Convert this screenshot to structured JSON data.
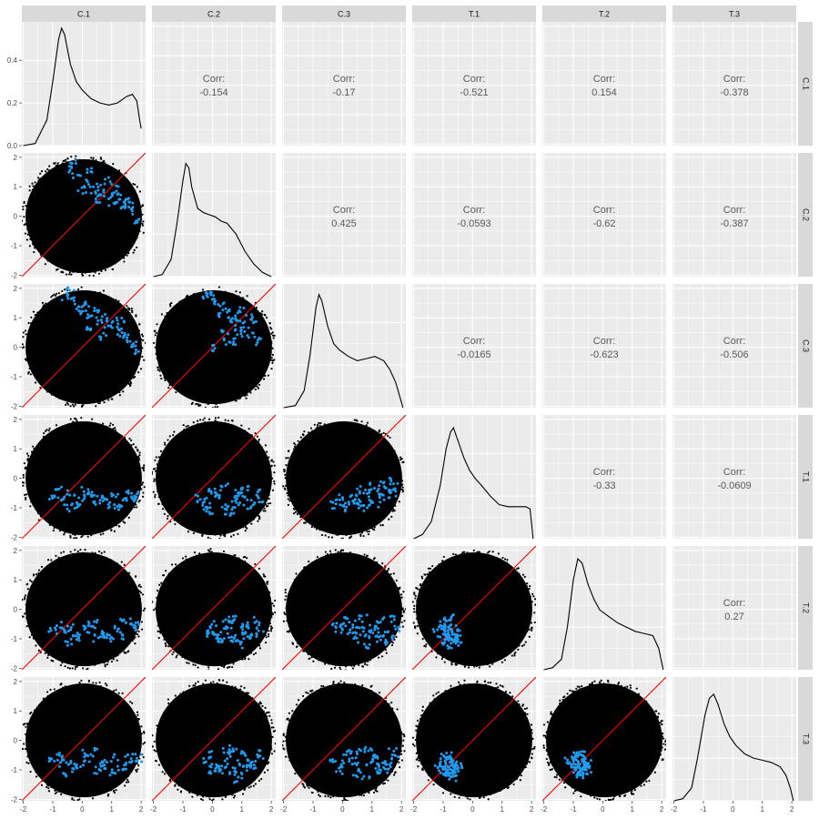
{
  "variables": [
    "C.1",
    "C.2",
    "C.3",
    "T.1",
    "T.2",
    "T.3"
  ],
  "colors": {
    "panel_bg": "#ebebeb",
    "grid": "#ffffff",
    "strip_bg": "#d9d9d9",
    "points": "#000000",
    "highlight": "#1f9bf0",
    "reference_line": "#ff0000"
  },
  "chart_data": {
    "type": "scatter",
    "layout": "pairs-matrix",
    "upper": "correlation-text",
    "diagonal": "density",
    "lower": "scatter with highlighted subset and y = x reference line",
    "corr_label": "Corr:",
    "axis_ticks": [
      "-2",
      "-1",
      "0",
      "1",
      "2"
    ],
    "axis_range": [
      -2.05,
      2.15
    ],
    "density_yticks": [
      "0.0",
      "0.2",
      "0.4"
    ],
    "density_ylim": [
      0,
      0.58
    ],
    "correlations": [
      {
        "row": "C.1",
        "col": "C.2",
        "value": "-0.154"
      },
      {
        "row": "C.1",
        "col": "C.3",
        "value": "-0.17"
      },
      {
        "row": "C.1",
        "col": "T.1",
        "value": "-0.521"
      },
      {
        "row": "C.1",
        "col": "T.2",
        "value": "0.154"
      },
      {
        "row": "C.1",
        "col": "T.3",
        "value": "-0.378"
      },
      {
        "row": "C.2",
        "col": "C.3",
        "value": "0.425"
      },
      {
        "row": "C.2",
        "col": "T.1",
        "value": "-0.0593"
      },
      {
        "row": "C.2",
        "col": "T.2",
        "value": "-0.62"
      },
      {
        "row": "C.2",
        "col": "T.3",
        "value": "-0.387"
      },
      {
        "row": "C.3",
        "col": "T.1",
        "value": "-0.0165"
      },
      {
        "row": "C.3",
        "col": "T.2",
        "value": "-0.623"
      },
      {
        "row": "C.3",
        "col": "T.3",
        "value": "-0.506"
      },
      {
        "row": "T.1",
        "col": "T.2",
        "value": "-0.33"
      },
      {
        "row": "T.1",
        "col": "T.3",
        "value": "-0.0609"
      },
      {
        "row": "T.2",
        "col": "T.3",
        "value": "0.27"
      }
    ],
    "densities": [
      {
        "var": "C.1",
        "x": [
          -2.0,
          -1.6,
          -1.2,
          -1.0,
          -0.8,
          -0.7,
          -0.6,
          -0.4,
          -0.2,
          0.0,
          0.3,
          0.6,
          0.9,
          1.2,
          1.5,
          1.7,
          1.85,
          1.95,
          2.0
        ],
        "y": [
          0.0,
          0.01,
          0.12,
          0.3,
          0.5,
          0.55,
          0.52,
          0.38,
          0.3,
          0.26,
          0.22,
          0.2,
          0.19,
          0.2,
          0.23,
          0.24,
          0.21,
          0.12,
          0.08
        ]
      },
      {
        "var": "C.2",
        "x": [
          -2.0,
          -1.7,
          -1.4,
          -1.2,
          -1.0,
          -0.9,
          -0.8,
          -0.7,
          -0.5,
          -0.3,
          -0.1,
          0.1,
          0.3,
          0.5,
          0.8,
          1.1,
          1.4,
          1.7,
          2.0
        ],
        "y": [
          0.0,
          0.01,
          0.08,
          0.25,
          0.45,
          0.53,
          0.51,
          0.42,
          0.32,
          0.3,
          0.29,
          0.28,
          0.26,
          0.25,
          0.2,
          0.12,
          0.06,
          0.02,
          0.0
        ]
      },
      {
        "var": "C.3",
        "x": [
          -2.0,
          -1.6,
          -1.3,
          -1.1,
          -0.9,
          -0.8,
          -0.7,
          -0.5,
          -0.3,
          -0.1,
          0.2,
          0.5,
          0.8,
          1.1,
          1.4,
          1.6,
          1.8,
          1.95,
          2.05
        ],
        "y": [
          0.0,
          0.01,
          0.08,
          0.25,
          0.47,
          0.53,
          0.5,
          0.38,
          0.3,
          0.27,
          0.24,
          0.22,
          0.23,
          0.24,
          0.22,
          0.18,
          0.12,
          0.05,
          0.0
        ]
      },
      {
        "var": "T.1",
        "x": [
          -2.0,
          -1.7,
          -1.4,
          -1.1,
          -0.9,
          -0.75,
          -0.65,
          -0.5,
          -0.3,
          -0.1,
          0.1,
          0.3,
          0.6,
          0.9,
          1.2,
          1.5,
          1.8,
          1.95,
          2.05
        ],
        "y": [
          0.0,
          0.02,
          0.08,
          0.25,
          0.42,
          0.5,
          0.52,
          0.46,
          0.38,
          0.32,
          0.28,
          0.25,
          0.2,
          0.16,
          0.15,
          0.15,
          0.15,
          0.14,
          0.0
        ]
      },
      {
        "var": "T.2",
        "x": [
          -2.0,
          -1.7,
          -1.4,
          -1.2,
          -1.0,
          -0.85,
          -0.7,
          -0.5,
          -0.3,
          -0.1,
          0.2,
          0.5,
          0.8,
          1.1,
          1.4,
          1.7,
          1.9,
          2.05
        ],
        "y": [
          0.0,
          0.01,
          0.05,
          0.2,
          0.42,
          0.52,
          0.5,
          0.4,
          0.33,
          0.28,
          0.25,
          0.22,
          0.2,
          0.18,
          0.17,
          0.16,
          0.1,
          0.0
        ]
      },
      {
        "var": "T.3",
        "x": [
          -2.0,
          -1.7,
          -1.4,
          -1.2,
          -0.95,
          -0.8,
          -0.65,
          -0.5,
          -0.3,
          -0.1,
          0.1,
          0.4,
          0.7,
          1.0,
          1.3,
          1.6,
          1.8,
          1.95,
          2.05
        ],
        "y": [
          0.0,
          0.01,
          0.06,
          0.2,
          0.4,
          0.48,
          0.5,
          0.45,
          0.36,
          0.3,
          0.26,
          0.22,
          0.2,
          0.19,
          0.18,
          0.16,
          0.12,
          0.06,
          0.0
        ]
      }
    ],
    "highlight_points": [
      {
        "row": "C.2",
        "col": "C.1",
        "x": [
          -0.5,
          -0.2,
          0.1,
          0.4,
          0.7,
          0.9,
          1.1,
          1.3,
          1.5,
          1.7,
          -0.3,
          0.2,
          0.6,
          1.0,
          1.4,
          1.8,
          0.0,
          0.5,
          1.2,
          1.6
        ],
        "y": [
          1.6,
          1.4,
          1.1,
          0.9,
          0.8,
          1.2,
          0.7,
          0.6,
          0.4,
          0.2,
          1.8,
          1.5,
          1.0,
          0.5,
          0.3,
          -0.1,
          0.9,
          0.6,
          0.9,
          0.5
        ]
      },
      {
        "row": "C.3",
        "col": "C.1",
        "x": [
          -0.6,
          -0.3,
          0.0,
          0.3,
          0.6,
          0.9,
          1.2,
          1.5,
          1.7,
          -0.4,
          0.1,
          0.5,
          0.8,
          1.1,
          1.4,
          1.8,
          0.2,
          0.7,
          1.3,
          -0.1
        ],
        "y": [
          1.7,
          1.6,
          1.3,
          1.1,
          0.9,
          0.8,
          0.5,
          0.3,
          0.1,
          1.9,
          1.5,
          1.2,
          1.0,
          0.7,
          0.4,
          -0.1,
          0.6,
          0.4,
          0.9,
          1.2
        ]
      },
      {
        "row": "C.3",
        "col": "C.2",
        "x": [
          -0.3,
          0.0,
          0.3,
          0.5,
          0.7,
          0.9,
          1.1,
          1.3,
          1.5,
          0.2,
          0.6,
          1.0,
          1.4,
          -0.1,
          0.4,
          0.8,
          1.2,
          0.1,
          0.5,
          0.9
        ],
        "y": [
          1.8,
          1.6,
          1.4,
          1.2,
          1.0,
          0.8,
          0.6,
          0.4,
          0.2,
          1.1,
          0.9,
          1.3,
          0.9,
          1.9,
          0.5,
          0.2,
          1.0,
          0.0,
          0.2,
          0.5
        ]
      },
      {
        "row": "T.1",
        "col": "C.1",
        "x": [
          -1.0,
          -0.7,
          -0.4,
          -0.1,
          0.2,
          0.5,
          0.8,
          1.1,
          1.4,
          1.7,
          -0.8,
          -0.2,
          0.4,
          1.0,
          1.6,
          -0.5,
          0.1,
          0.7,
          1.3,
          1.9
        ],
        "y": [
          -0.6,
          -0.7,
          -0.5,
          -0.8,
          -0.6,
          -0.9,
          -0.7,
          -0.6,
          -0.8,
          -0.7,
          -0.4,
          -0.9,
          -0.5,
          -0.9,
          -0.5,
          -1.0,
          -0.4,
          -0.8,
          -1.0,
          -0.6
        ]
      },
      {
        "row": "T.1",
        "col": "C.2",
        "x": [
          -0.5,
          -0.2,
          0.1,
          0.4,
          0.7,
          1.0,
          1.3,
          1.6,
          -0.3,
          0.2,
          0.6,
          0.9,
          1.2,
          1.5,
          0.0,
          0.5,
          0.8,
          1.1,
          -0.1,
          0.4
        ],
        "y": [
          -0.7,
          -0.8,
          -0.6,
          -0.9,
          -0.7,
          -0.6,
          -0.8,
          -0.7,
          -1.0,
          -0.5,
          -1.1,
          -0.5,
          -1.0,
          -0.5,
          -0.4,
          -1.2,
          -0.9,
          -0.4,
          -1.1,
          -0.3
        ]
      },
      {
        "row": "T.1",
        "col": "C.3",
        "x": [
          -0.3,
          0.0,
          0.3,
          0.6,
          0.9,
          1.2,
          1.5,
          1.8,
          0.1,
          0.5,
          0.8,
          1.1,
          1.4,
          1.7,
          -0.1,
          0.4,
          1.0,
          1.6,
          0.7,
          1.3
        ],
        "y": [
          -0.9,
          -0.8,
          -0.7,
          -0.8,
          -0.6,
          -0.5,
          -0.4,
          -0.3,
          -1.0,
          -0.9,
          -1.0,
          -0.9,
          -0.7,
          -0.6,
          -0.6,
          -0.5,
          -0.3,
          -0.1,
          -0.4,
          -0.2
        ]
      },
      {
        "row": "T.2",
        "col": "C.1",
        "x": [
          -1.0,
          -0.7,
          -0.4,
          -0.1,
          0.2,
          0.5,
          0.8,
          1.1,
          1.4,
          1.7,
          -0.8,
          -0.2,
          0.4,
          1.0,
          1.6,
          -0.5,
          0.1,
          0.7,
          1.3,
          1.9
        ],
        "y": [
          -0.7,
          -0.8,
          -0.6,
          -0.9,
          -0.7,
          -1.0,
          -0.8,
          -0.7,
          -0.9,
          -0.6,
          -0.5,
          -1.0,
          -0.5,
          -1.0,
          -0.4,
          -1.1,
          -0.5,
          -0.9,
          -0.4,
          -0.5
        ]
      },
      {
        "row": "T.2",
        "col": "C.2",
        "x": [
          -0.2,
          0.1,
          0.4,
          0.7,
          1.0,
          1.3,
          1.6,
          0.0,
          0.3,
          0.6,
          0.9,
          1.2,
          1.5,
          -0.1,
          0.5,
          0.8,
          1.1,
          0.2,
          0.7,
          1.4
        ],
        "y": [
          -0.8,
          -0.9,
          -0.7,
          -1.0,
          -0.8,
          -0.6,
          -0.7,
          -0.5,
          -1.1,
          -0.5,
          -1.2,
          -0.9,
          -0.4,
          -0.7,
          -0.4,
          -1.0,
          -0.5,
          -1.0,
          -0.3,
          -0.9
        ]
      },
      {
        "row": "T.2",
        "col": "C.3",
        "x": [
          -0.3,
          0.0,
          0.3,
          0.6,
          0.9,
          1.2,
          1.5,
          1.8,
          0.1,
          0.5,
          0.8,
          1.1,
          1.4,
          1.7,
          -0.1,
          0.4,
          1.0,
          1.6,
          0.7,
          1.3
        ],
        "y": [
          -0.5,
          -0.6,
          -0.8,
          -0.7,
          -0.9,
          -1.0,
          -0.8,
          -0.6,
          -0.4,
          -1.0,
          -1.2,
          -0.7,
          -1.1,
          -0.3,
          -0.7,
          -0.5,
          -0.6,
          -0.9,
          -0.3,
          -0.4
        ]
      },
      {
        "row": "T.2",
        "col": "T.1",
        "x": [
          -1.1,
          -1.0,
          -0.9,
          -0.8,
          -0.7,
          -0.6,
          -0.5,
          -0.9,
          -0.8,
          -0.7,
          -0.6,
          -1.0,
          -0.8,
          -0.7,
          -0.9,
          -0.6,
          -0.8,
          -1.2,
          -0.5,
          -0.7
        ],
        "y": [
          -0.6,
          -0.9,
          -1.0,
          -0.8,
          -1.1,
          -0.9,
          -0.8,
          -0.6,
          -1.2,
          -0.6,
          -1.0,
          -0.4,
          -0.5,
          -0.8,
          -1.1,
          -1.2,
          -0.9,
          -0.8,
          -1.0,
          -0.3
        ]
      },
      {
        "row": "T.3",
        "col": "C.1",
        "x": [
          -1.0,
          -0.7,
          -0.4,
          -0.1,
          0.2,
          0.5,
          0.8,
          1.1,
          1.4,
          1.7,
          -0.8,
          -0.2,
          0.4,
          1.0,
          1.6,
          -0.5,
          0.1,
          0.7,
          1.3,
          1.9
        ],
        "y": [
          -0.6,
          -0.8,
          -0.7,
          -0.9,
          -0.6,
          -1.0,
          -0.8,
          -0.6,
          -0.9,
          -0.7,
          -0.5,
          -1.0,
          -0.4,
          -1.1,
          -0.5,
          -1.1,
          -0.4,
          -0.9,
          -1.0,
          -0.6
        ]
      },
      {
        "row": "T.3",
        "col": "C.2",
        "x": [
          -0.2,
          0.1,
          0.4,
          0.7,
          1.0,
          1.3,
          1.6,
          0.0,
          0.3,
          0.6,
          0.9,
          1.2,
          1.5,
          -0.1,
          0.5,
          0.8,
          1.1,
          0.2,
          0.7,
          1.4
        ],
        "y": [
          -0.7,
          -0.9,
          -0.8,
          -1.0,
          -0.8,
          -0.7,
          -0.6,
          -0.5,
          -1.1,
          -0.5,
          -1.2,
          -0.9,
          -0.4,
          -1.0,
          -0.4,
          -1.3,
          -0.5,
          -1.0,
          -0.3,
          -0.9
        ]
      },
      {
        "row": "T.3",
        "col": "C.3",
        "x": [
          -0.3,
          0.0,
          0.3,
          0.6,
          0.9,
          1.2,
          1.5,
          1.8,
          0.1,
          0.5,
          0.8,
          1.1,
          1.4,
          1.7,
          -0.1,
          0.4,
          1.0,
          1.6,
          0.7,
          1.3
        ],
        "y": [
          -0.6,
          -0.8,
          -0.7,
          -0.9,
          -0.8,
          -1.0,
          -0.7,
          -0.6,
          -0.4,
          -1.1,
          -1.2,
          -0.6,
          -1.0,
          -0.4,
          -1.0,
          -0.5,
          -0.4,
          -0.9,
          -0.3,
          -0.8
        ]
      },
      {
        "row": "T.3",
        "col": "T.1",
        "x": [
          -1.2,
          -1.0,
          -0.9,
          -0.8,
          -0.7,
          -0.6,
          -0.5,
          -0.9,
          -0.8,
          -0.7,
          -0.6,
          -1.1,
          -0.8,
          -0.7,
          -0.9,
          -0.6,
          -0.8,
          -1.0,
          -0.5,
          -0.7
        ],
        "y": [
          -0.8,
          -1.0,
          -0.9,
          -1.1,
          -0.8,
          -1.0,
          -0.9,
          -0.6,
          -1.2,
          -0.6,
          -1.1,
          -0.9,
          -0.7,
          -1.0,
          -1.2,
          -0.8,
          -0.5,
          -0.6,
          -0.8,
          -1.3
        ]
      },
      {
        "row": "T.3",
        "col": "T.2",
        "x": [
          -1.2,
          -1.0,
          -0.9,
          -0.8,
          -0.7,
          -0.6,
          -0.5,
          -0.9,
          -0.8,
          -0.7,
          -0.6,
          -1.1,
          -0.8,
          -0.7,
          -0.9,
          -0.6,
          -0.8,
          -1.0,
          -0.5,
          -0.7
        ],
        "y": [
          -0.7,
          -0.9,
          -1.0,
          -0.8,
          -1.1,
          -0.9,
          -0.8,
          -0.5,
          -1.2,
          -0.6,
          -1.0,
          -0.8,
          -0.6,
          -0.9,
          -1.1,
          -1.2,
          -0.4,
          -0.6,
          -1.0,
          -0.5
        ]
      }
    ]
  }
}
